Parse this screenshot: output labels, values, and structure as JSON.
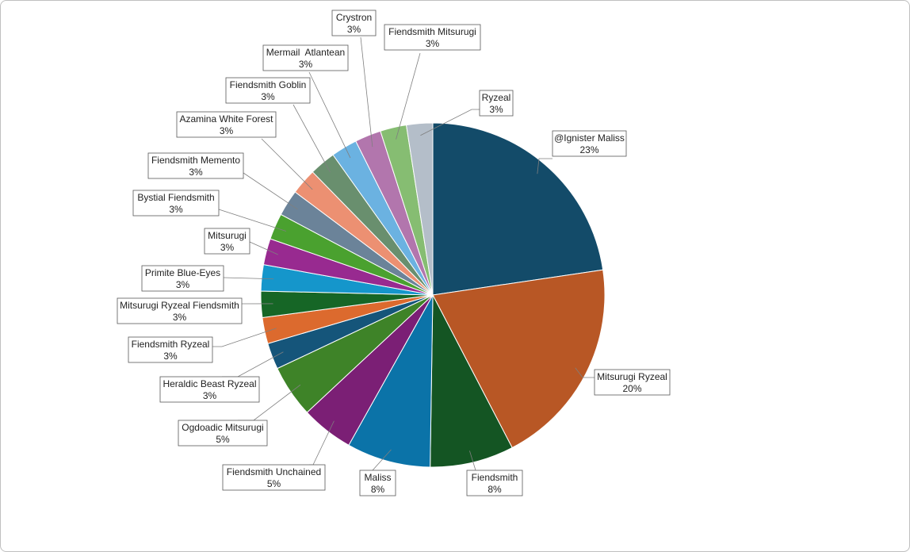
{
  "chart_data": {
    "type": "pie",
    "title": "",
    "start_angle_deg": 0,
    "direction": "clockwise",
    "slices": [
      {
        "label": "@Ignister Maliss",
        "value": 23,
        "display": "23%",
        "color": "#134b69"
      },
      {
        "label": "Mitsurugi Ryzeal",
        "value": 20,
        "display": "20%",
        "color": "#b85725"
      },
      {
        "label": "Fiendsmith",
        "value": 8,
        "display": "8%",
        "color": "#145523"
      },
      {
        "label": "Maliss",
        "value": 8,
        "display": "8%",
        "color": "#0b73a8"
      },
      {
        "label": "Fiendsmith Unchained",
        "value": 5,
        "display": "5%",
        "color": "#7b1f75"
      },
      {
        "label": "Ogdoadic Mitsurugi",
        "value": 5,
        "display": "5%",
        "color": "#3e8328"
      },
      {
        "label": "Heraldic Beast Ryzeal",
        "value": 2.5,
        "display": "3%",
        "color": "#15557a"
      },
      {
        "label": "Fiendsmith Ryzeal",
        "value": 2.5,
        "display": "3%",
        "color": "#dc6a2e"
      },
      {
        "label": "Mitsurugi Ryzeal Fiendsmith",
        "value": 2.5,
        "display": "3%",
        "color": "#166626"
      },
      {
        "label": "Primite Blue-Eyes",
        "value": 2.5,
        "display": "3%",
        "color": "#1596cb"
      },
      {
        "label": "Mitsurugi",
        "value": 2.5,
        "display": "3%",
        "color": "#982a90"
      },
      {
        "label": "Bystial Fiendsmith",
        "value": 2.5,
        "display": "3%",
        "color": "#4aa12f"
      },
      {
        "label": "Fiendsmith Memento",
        "value": 2.5,
        "display": "3%",
        "color": "#6b8399"
      },
      {
        "label": "Azamina White Forest",
        "value": 2.5,
        "display": "3%",
        "color": "#ec9072"
      },
      {
        "label": "Fiendsmith Goblin",
        "value": 2.5,
        "display": "3%",
        "color": "#698f6e"
      },
      {
        "label": "Mermail  Atlantean",
        "value": 2.5,
        "display": "3%",
        "color": "#6bb2e1"
      },
      {
        "label": "Crystron",
        "value": 2.5,
        "display": "3%",
        "color": "#b276ad"
      },
      {
        "label": "Fiendsmith Mitsurugi",
        "value": 2.5,
        "display": "3%",
        "color": "#86bd72"
      },
      {
        "label": "Ryzeal",
        "value": 2.5,
        "display": "3%",
        "color": "#b4bec9"
      }
    ],
    "legend": "none",
    "data_labels": "callouts"
  }
}
